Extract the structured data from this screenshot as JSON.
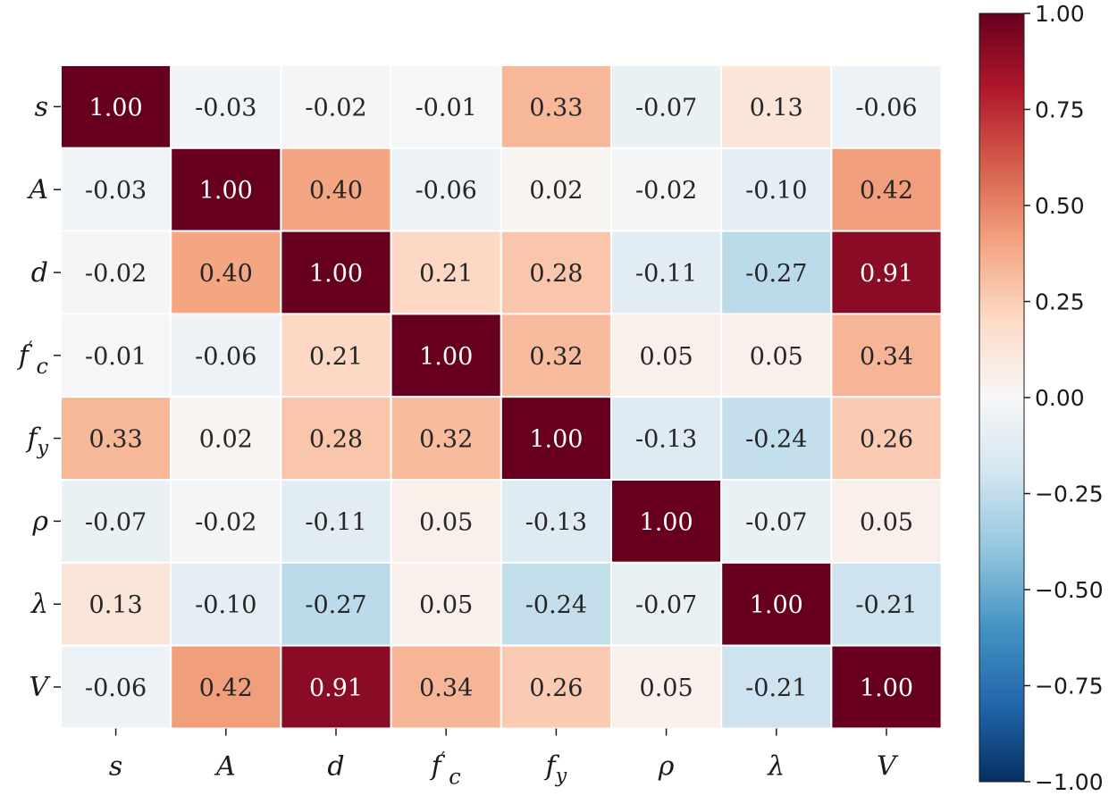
{
  "chart_data": {
    "type": "heatmap",
    "title": "",
    "xlabel": "",
    "ylabel": "",
    "x_labels": [
      {
        "base": "s",
        "sup": "",
        "sub": ""
      },
      {
        "base": "A",
        "sup": "",
        "sub": ""
      },
      {
        "base": "d",
        "sup": "",
        "sub": ""
      },
      {
        "base": "f",
        "sup": "′",
        "sub": "c"
      },
      {
        "base": "f",
        "sup": "",
        "sub": "y"
      },
      {
        "base": "ρ",
        "sup": "",
        "sub": ""
      },
      {
        "base": "λ",
        "sup": "",
        "sub": ""
      },
      {
        "base": "V",
        "sup": "",
        "sub": ""
      }
    ],
    "y_labels": [
      {
        "base": "s",
        "sup": "",
        "sub": ""
      },
      {
        "base": "A",
        "sup": "",
        "sub": ""
      },
      {
        "base": "d",
        "sup": "",
        "sub": ""
      },
      {
        "base": "f",
        "sup": "′",
        "sub": "c"
      },
      {
        "base": "f",
        "sup": "",
        "sub": "y"
      },
      {
        "base": "ρ",
        "sup": "",
        "sub": ""
      },
      {
        "base": "λ",
        "sup": "",
        "sub": ""
      },
      {
        "base": "V",
        "sup": "",
        "sub": ""
      }
    ],
    "values": [
      [
        1.0,
        -0.03,
        -0.02,
        -0.01,
        0.33,
        -0.07,
        0.13,
        -0.06
      ],
      [
        -0.03,
        1.0,
        0.4,
        -0.06,
        0.02,
        -0.02,
        -0.1,
        0.42
      ],
      [
        -0.02,
        0.4,
        1.0,
        0.21,
        0.28,
        -0.11,
        -0.27,
        0.91
      ],
      [
        -0.01,
        -0.06,
        0.21,
        1.0,
        0.32,
        0.05,
        0.05,
        0.34
      ],
      [
        0.33,
        0.02,
        0.28,
        0.32,
        1.0,
        -0.13,
        -0.24,
        0.26
      ],
      [
        -0.07,
        -0.02,
        -0.11,
        0.05,
        -0.13,
        1.0,
        -0.07,
        0.05
      ],
      [
        0.13,
        -0.1,
        -0.27,
        0.05,
        -0.24,
        -0.07,
        1.0,
        -0.21
      ],
      [
        -0.06,
        0.42,
        0.91,
        0.34,
        0.26,
        0.05,
        -0.21,
        1.0
      ]
    ],
    "value_labels": [
      [
        "1.00",
        "-0.03",
        "-0.02",
        "-0.01",
        "0.33",
        "-0.07",
        "0.13",
        "-0.06"
      ],
      [
        "-0.03",
        "1.00",
        "0.40",
        "-0.06",
        "0.02",
        "-0.02",
        "-0.10",
        "0.42"
      ],
      [
        "-0.02",
        "0.40",
        "1.00",
        "0.21",
        "0.28",
        "-0.11",
        "-0.27",
        "0.91"
      ],
      [
        "-0.01",
        "-0.06",
        "0.21",
        "1.00",
        "0.32",
        "0.05",
        "0.05",
        "0.34"
      ],
      [
        "0.33",
        "0.02",
        "0.28",
        "0.32",
        "1.00",
        "-0.13",
        "-0.24",
        "0.26"
      ],
      [
        "-0.07",
        "-0.02",
        "-0.11",
        "0.05",
        "-0.13",
        "1.00",
        "-0.07",
        "0.05"
      ],
      [
        "0.13",
        "-0.10",
        "-0.27",
        "0.05",
        "-0.24",
        "-0.07",
        "1.00",
        "-0.21"
      ],
      [
        "-0.06",
        "0.42",
        "0.91",
        "0.34",
        "0.26",
        "0.05",
        "-0.21",
        "1.00"
      ]
    ],
    "colorbar": {
      "range": [
        -1.0,
        1.0
      ],
      "ticks": [
        1.0,
        0.75,
        0.5,
        0.25,
        0.0,
        -0.25,
        -0.5,
        -0.75,
        -1.0
      ],
      "tick_labels": [
        "1.00",
        "0.75",
        "0.50",
        "0.25",
        "0.00",
        "−0.25",
        "−0.50",
        "−0.75",
        "−1.00"
      ],
      "colormap": "RdBu_r",
      "colors": [
        "#053061",
        "#2166ac",
        "#4393c3",
        "#92c5de",
        "#d1e5f0",
        "#f7f7f7",
        "#fddbc7",
        "#f4a582",
        "#d6604d",
        "#b2182b",
        "#67001f"
      ]
    },
    "grid": false,
    "cell_border_color": "#ffffff",
    "text_color_dark": "#262626",
    "text_color_light": "#ffffff"
  }
}
